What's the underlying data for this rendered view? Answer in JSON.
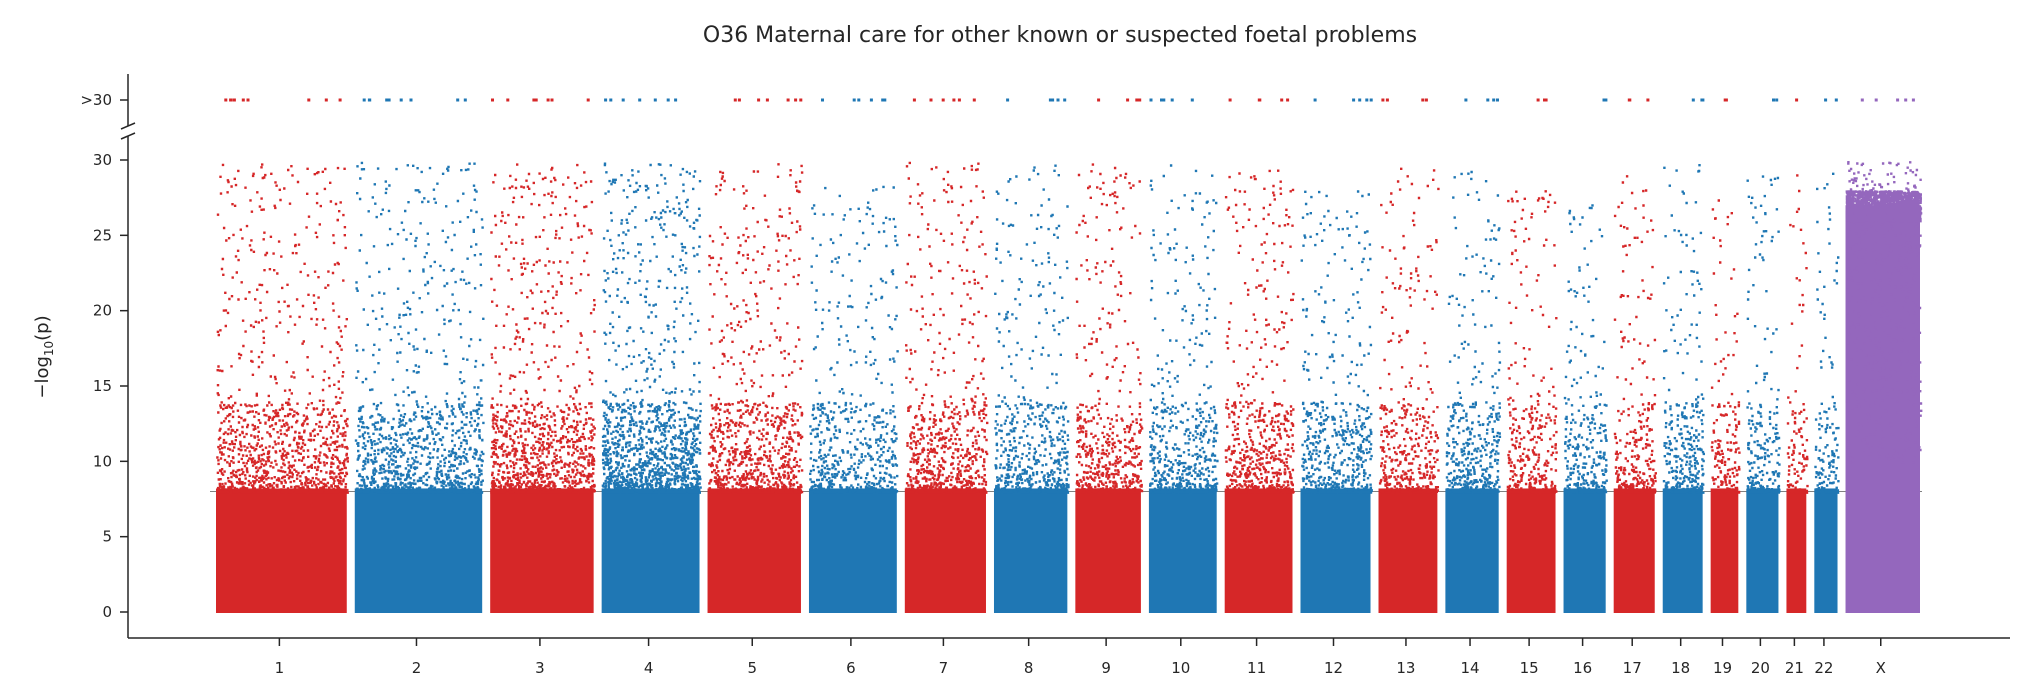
{
  "chart_data": {
    "type": "scatter",
    "subtype": "manhattan",
    "title": "O36 Maternal care for other known or suspected foetal problems",
    "ylabel": "−log10(p)",
    "ylabel_main": "−log",
    "ylabel_sub": "10",
    "ylabel_end": "(p)",
    "xlabel": "",
    "ylim": [
      0,
      30
    ],
    "y_ticks": [
      0,
      5,
      10,
      15,
      20,
      25,
      30
    ],
    "y_tick_labels": [
      "0",
      "5",
      "10",
      "15",
      "20",
      "25",
      "30"
    ],
    "y_cap_label": ">30",
    "axis_break": true,
    "significance_line": 8,
    "grid": false,
    "legend": "none",
    "chromosomes": [
      {
        "label": "1",
        "x_start": 0.0,
        "x_end": 12.45,
        "color": "#d62728",
        "peak": 29.8,
        "density": 1.0
      },
      {
        "label": "2",
        "x_start": 12.45,
        "x_end": 24.6,
        "color": "#1f77b4",
        "peak": 29.9,
        "density": 1.0
      },
      {
        "label": "3",
        "x_start": 24.6,
        "x_end": 34.6,
        "color": "#d62728",
        "peak": 29.9,
        "density": 1.2
      },
      {
        "label": "4",
        "x_start": 34.6,
        "x_end": 44.1,
        "color": "#1f77b4",
        "peak": 29.9,
        "density": 1.6
      },
      {
        "label": "5",
        "x_start": 44.1,
        "x_end": 53.2,
        "color": "#d62728",
        "peak": 29.8,
        "density": 1.1
      },
      {
        "label": "6",
        "x_start": 53.2,
        "x_end": 61.8,
        "color": "#1f77b4",
        "peak": 28.5,
        "density": 0.8
      },
      {
        "label": "7",
        "x_start": 61.8,
        "x_end": 69.8,
        "color": "#d62728",
        "peak": 29.9,
        "density": 1.0
      },
      {
        "label": "8",
        "x_start": 69.8,
        "x_end": 77.1,
        "color": "#1f77b4",
        "peak": 29.8,
        "density": 0.9
      },
      {
        "label": "9",
        "x_start": 77.1,
        "x_end": 83.7,
        "color": "#d62728",
        "peak": 29.9,
        "density": 0.9
      },
      {
        "label": "10",
        "x_start": 83.7,
        "x_end": 90.5,
        "color": "#1f77b4",
        "peak": 29.8,
        "density": 0.9
      },
      {
        "label": "11",
        "x_start": 90.5,
        "x_end": 97.3,
        "color": "#d62728",
        "peak": 29.7,
        "density": 1.0
      },
      {
        "label": "12",
        "x_start": 97.3,
        "x_end": 104.3,
        "color": "#1f77b4",
        "peak": 28.0,
        "density": 0.9
      },
      {
        "label": "13",
        "x_start": 104.3,
        "x_end": 110.3,
        "color": "#d62728",
        "peak": 29.5,
        "density": 0.8
      },
      {
        "label": "14",
        "x_start": 110.3,
        "x_end": 115.8,
        "color": "#1f77b4",
        "peak": 29.5,
        "density": 0.9
      },
      {
        "label": "15",
        "x_start": 115.8,
        "x_end": 120.9,
        "color": "#d62728",
        "peak": 28.5,
        "density": 0.8
      },
      {
        "label": "16",
        "x_start": 120.9,
        "x_end": 125.4,
        "color": "#1f77b4",
        "peak": 28.0,
        "density": 0.8
      },
      {
        "label": "17",
        "x_start": 125.4,
        "x_end": 129.8,
        "color": "#d62728",
        "peak": 29.0,
        "density": 0.8
      },
      {
        "label": "18",
        "x_start": 129.8,
        "x_end": 134.1,
        "color": "#1f77b4",
        "peak": 29.8,
        "density": 0.9
      },
      {
        "label": "19",
        "x_start": 134.1,
        "x_end": 137.3,
        "color": "#d62728",
        "peak": 27.5,
        "density": 0.7
      },
      {
        "label": "20",
        "x_start": 137.3,
        "x_end": 140.9,
        "color": "#1f77b4",
        "peak": 29.0,
        "density": 0.8
      },
      {
        "label": "21",
        "x_start": 140.9,
        "x_end": 143.4,
        "color": "#d62728",
        "peak": 29.5,
        "density": 0.6
      },
      {
        "label": "22",
        "x_start": 143.4,
        "x_end": 146.2,
        "color": "#1f77b4",
        "peak": 29.8,
        "density": 0.7
      },
      {
        "label": "X",
        "x_start": 146.2,
        "x_end": 153.6,
        "color": "#9467bd",
        "peak": 30.0,
        "density": 3.0
      }
    ],
    "capped_points_note": "points with -log10(p) > 30 are drawn in the top strip labelled >30",
    "colors": {
      "red": "#d62728",
      "blue": "#1f77b4",
      "purple": "#9467bd",
      "axis": "#262626",
      "sigline": "#808080"
    }
  }
}
